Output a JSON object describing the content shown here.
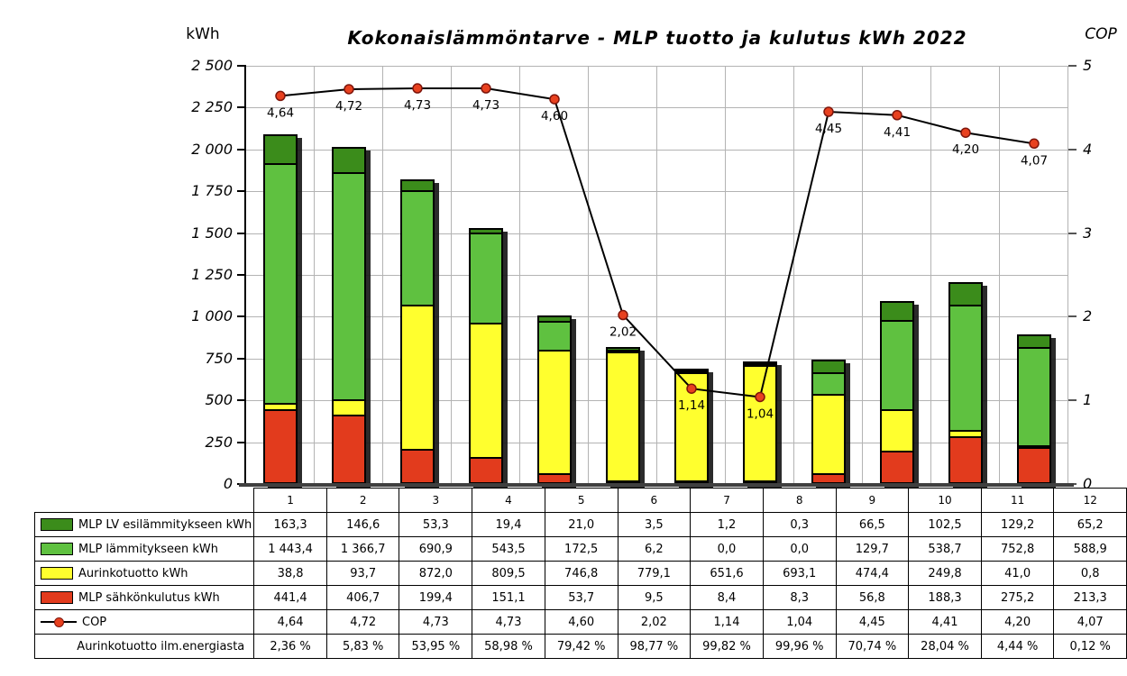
{
  "title": "Kokonaislämmöntarve - MLP tuotto ja kulutus kWh 2022",
  "left_axis_title": "kWh",
  "right_axis_title": "COP",
  "chart_data": {
    "type": "bar+line",
    "title": "Kokonaislämmöntarve - MLP tuotto ja kulutus kWh 2022",
    "categories": [
      "1",
      "2",
      "3",
      "4",
      "5",
      "6",
      "7",
      "8",
      "9",
      "10",
      "11",
      "12"
    ],
    "stacked": true,
    "grid": true,
    "series": [
      {
        "name": "MLP LV esilämmitykseen kWh",
        "color": "#3b8c1b",
        "values": [
          163.3,
          146.6,
          53.3,
          19.4,
          21.0,
          3.5,
          1.2,
          0.3,
          66.5,
          102.5,
          129.2,
          65.2
        ]
      },
      {
        "name": "MLP lämmitykseen kWh",
        "color": "#5fc140",
        "values": [
          1443.4,
          1366.7,
          690.9,
          543.5,
          172.5,
          6.2,
          0.0,
          0.0,
          129.7,
          538.7,
          752.8,
          588.9
        ]
      },
      {
        "name": "Aurinkotuotto kWh",
        "color": "#ffff2e",
        "values": [
          38.8,
          93.7,
          872.0,
          809.5,
          746.8,
          779.1,
          651.6,
          693.1,
          474.4,
          249.8,
          41.0,
          0.8
        ]
      },
      {
        "name": "MLP sähkönkulutus kWh",
        "color": "#e23b1d",
        "values": [
          441.4,
          406.7,
          199.4,
          151.1,
          53.7,
          9.5,
          8.4,
          8.3,
          56.8,
          188.3,
          275.2,
          213.3
        ]
      }
    ],
    "line_series": {
      "name": "COP",
      "color": "#000000",
      "marker_color": "#e8411f",
      "marker_edge": "#7e150b",
      "values": [
        4.64,
        4.72,
        4.73,
        4.73,
        4.6,
        2.02,
        1.14,
        1.04,
        4.45,
        4.41,
        4.2,
        4.07
      ],
      "labels": [
        "4,64",
        "4,72",
        "4,73",
        "4,73",
        "4,60",
        "2,02",
        "1,14",
        "1,04",
        "4,45",
        "4,41",
        "4,20",
        "4,07"
      ],
      "axis": "right"
    },
    "left_axis": {
      "label": "kWh",
      "min": 0,
      "max": 2500,
      "step": 250,
      "tick_labels": [
        "2 500",
        "2 250",
        "2 000",
        "1 750",
        "1 500",
        "1 250",
        "1 000",
        "750",
        "500",
        "250",
        "0"
      ]
    },
    "right_axis": {
      "label": "COP",
      "min": 0,
      "max": 5,
      "step": 1,
      "tick_labels": [
        "5",
        "4",
        "3",
        "2",
        "1",
        "0"
      ]
    },
    "legend_position": "table-left"
  },
  "table": {
    "months": [
      "1",
      "2",
      "3",
      "4",
      "5",
      "6",
      "7",
      "8",
      "9",
      "10",
      "11",
      "12"
    ],
    "rows": [
      {
        "label": "MLP LV esilämmitykseen kWh",
        "swatch": "#3b8c1b",
        "values": [
          "163,3",
          "146,6",
          "53,3",
          "19,4",
          "21,0",
          "3,5",
          "1,2",
          "0,3",
          "66,5",
          "102,5",
          "129,2",
          "65,2"
        ]
      },
      {
        "label": "MLP lämmitykseen kWh",
        "swatch": "#5fc140",
        "values": [
          "1 443,4",
          "1 366,7",
          "690,9",
          "543,5",
          "172,5",
          "6,2",
          "0,0",
          "0,0",
          "129,7",
          "538,7",
          "752,8",
          "588,9"
        ]
      },
      {
        "label": "Aurinkotuotto kWh",
        "swatch": "#ffff2e",
        "values": [
          "38,8",
          "93,7",
          "872,0",
          "809,5",
          "746,8",
          "779,1",
          "651,6",
          "693,1",
          "474,4",
          "249,8",
          "41,0",
          "0,8"
        ]
      },
      {
        "label": "MLP sähkönkulutus kWh",
        "swatch": "#e23b1d",
        "values": [
          "441,4",
          "406,7",
          "199,4",
          "151,1",
          "53,7",
          "9,5",
          "8,4",
          "8,3",
          "56,8",
          "188,3",
          "275,2",
          "213,3"
        ]
      },
      {
        "label": "COP",
        "swatch": "line",
        "values": [
          "4,64",
          "4,72",
          "4,73",
          "4,73",
          "4,60",
          "2,02",
          "1,14",
          "1,04",
          "4,45",
          "4,41",
          "4,20",
          "4,07"
        ]
      },
      {
        "label": "Aurinkotuotto ilm.energiasta",
        "swatch": "none",
        "values": [
          "2,36 %",
          "5,83 %",
          "53,95 %",
          "58,98 %",
          "79,42 %",
          "98,77 %",
          "99,82 %",
          "99,96 %",
          "70,74 %",
          "28,04 %",
          "4,44 %",
          "0,12 %"
        ]
      }
    ]
  }
}
